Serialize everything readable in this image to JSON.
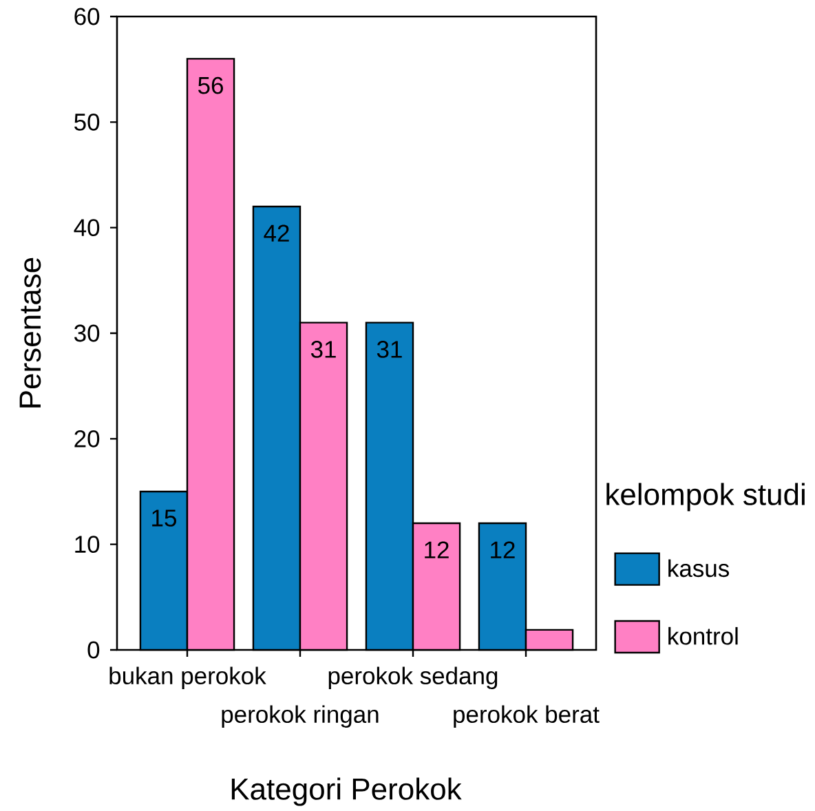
{
  "chart_data": {
    "type": "bar",
    "xlabel": "Kategori Perokok",
    "ylabel": "Persentase",
    "legend_title": "kelompok studi",
    "categories": [
      "bukan perokok",
      "perokok ringan",
      "perokok sedang",
      "perokok berat"
    ],
    "series": [
      {
        "name": "kasus",
        "color": "#0a7fc0",
        "values": [
          15,
          42,
          31,
          12
        ],
        "value_labels": [
          "15",
          "42",
          "31",
          "12"
        ]
      },
      {
        "name": "kontrol",
        "color": "#ff80c4",
        "values": [
          56,
          31,
          12,
          1.9
        ],
        "value_labels": [
          "56",
          "31",
          "12",
          null
        ]
      }
    ],
    "ylim": [
      0,
      60
    ],
    "yticks": [
      0,
      10,
      20,
      30,
      40,
      50,
      60
    ],
    "legend": "right"
  }
}
